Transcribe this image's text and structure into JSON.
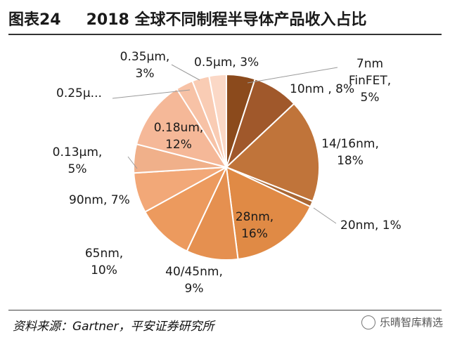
{
  "header": {
    "figure_no": "图表24",
    "title": "2018 全球不同制程半导体产品收入占比"
  },
  "footer": {
    "source": "资料来源：Gartner，平安证券研究所"
  },
  "watermark": {
    "text": "乐晴智库精选"
  },
  "chart_data": {
    "type": "pie",
    "start_angle_deg": 0,
    "direction": "clockwise",
    "slices": [
      {
        "name": "7nm FinFET",
        "value": 5,
        "label": [
          "7nm",
          "FinFET,",
          "5%"
        ],
        "color": "#8b4a1c"
      },
      {
        "name": "10nm",
        "value": 8,
        "label": [
          "10nm , 8%"
        ],
        "color": "#a0582b"
      },
      {
        "name": "14/16nm",
        "value": 18,
        "label": [
          "14/16nm,",
          "18%"
        ],
        "color": "#c0743a"
      },
      {
        "name": "20nm",
        "value": 1,
        "label": [
          "20nm, 1%"
        ],
        "color": "#a96734"
      },
      {
        "name": "28nm",
        "value": 16,
        "label": [
          "28nm,",
          "16%"
        ],
        "color": "#e08a45"
      },
      {
        "name": "40/45nm",
        "value": 9,
        "label": [
          "40/45nm,",
          "9%"
        ],
        "color": "#e59050"
      },
      {
        "name": "65nm",
        "value": 10,
        "label": [
          "65nm,",
          "10%"
        ],
        "color": "#ec9a5e"
      },
      {
        "name": "90nm",
        "value": 7,
        "label": [
          "90nm, 7%"
        ],
        "color": "#f2a878"
      },
      {
        "name": "0.13μm",
        "value": 5,
        "label": [
          "0.13μm,",
          "5%"
        ],
        "color": "#f0b08a"
      },
      {
        "name": "0.18um",
        "value": 12,
        "label": [
          "0.18um,",
          "12%"
        ],
        "color": "#f5b898"
      },
      {
        "name": "0.25μm",
        "value": 3,
        "label": [
          "0.25μ..."
        ],
        "color": "#f7c2a6"
      },
      {
        "name": "0.35μm",
        "value": 3,
        "label": [
          "0.35μm,",
          "3%"
        ],
        "color": "#f9ccb4"
      },
      {
        "name": "0.5μm",
        "value": 3,
        "label": [
          "0.5μm, 3%"
        ],
        "color": "#fbd8c6"
      }
    ]
  }
}
